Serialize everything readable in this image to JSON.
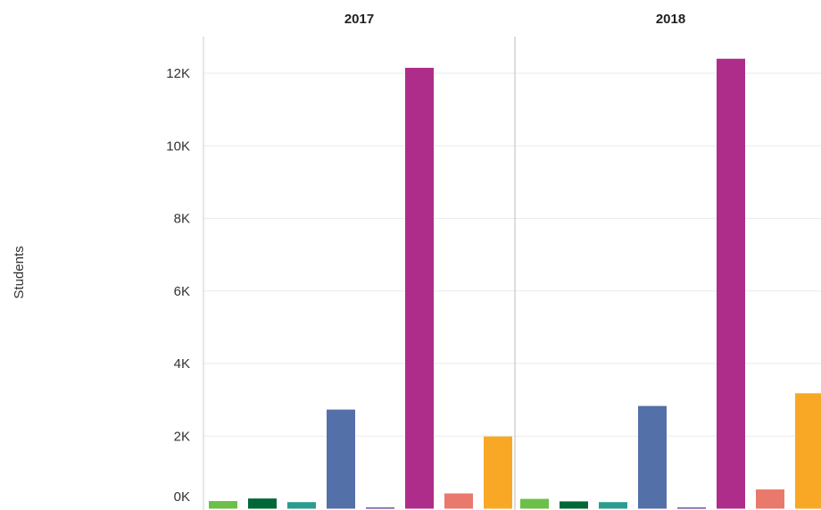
{
  "chart_data": {
    "type": "bar",
    "ylabel": "Students",
    "ylim": [
      0,
      13000
    ],
    "yticks": [
      0,
      2000,
      4000,
      6000,
      8000,
      10000,
      12000
    ],
    "ytick_labels": [
      "0K",
      "2K",
      "4K",
      "6K",
      "8K",
      "10K",
      "12K"
    ],
    "grid": true,
    "panels": [
      {
        "title": "2017",
        "colors": [
          "#6cc04a",
          "#006837",
          "#2a9d8f",
          "#5470a8",
          "#4b2e83",
          "#ae2d8a",
          "#e8796c",
          "#f9a825"
        ],
        "values": [
          210,
          280,
          180,
          2730,
          30,
          12150,
          420,
          1990
        ]
      },
      {
        "title": "2018",
        "colors": [
          "#6cc04a",
          "#006837",
          "#2a9d8f",
          "#5470a8",
          "#4b2e83",
          "#ae2d8a",
          "#e8796c",
          "#f9a825"
        ],
        "values": [
          270,
          200,
          180,
          2830,
          30,
          12400,
          530,
          3180
        ]
      }
    ]
  }
}
